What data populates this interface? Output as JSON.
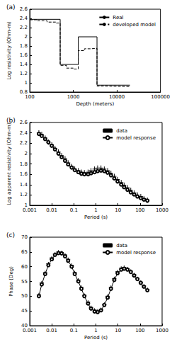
{
  "chart_data": [
    {
      "type": "line",
      "title": "(a)",
      "x_label": "Depth (meters)",
      "y_label": "Log resistivity (Ohm-m)",
      "log": "x",
      "grid": false,
      "legend": "upper right",
      "xlim": [
        100,
        100000
      ],
      "xticks": [
        100,
        1000,
        10000,
        100000
      ],
      "ylim": [
        0.8,
        2.6
      ],
      "yticks": [
        0.8,
        1,
        1.2,
        1.4,
        1.6,
        1.8,
        2,
        2.2,
        2.4,
        2.6
      ],
      "series": [
        {
          "name": "Real",
          "color": "#000000",
          "line_style": "solid",
          "marker": "none",
          "x": [
            100,
            500,
            500,
            1300,
            1300,
            3500,
            3500,
            20000
          ],
          "values": [
            2.38,
            2.38,
            1.4,
            1.4,
            2.0,
            2.0,
            0.95,
            0.95
          ]
        },
        {
          "name": "developed model",
          "color": "#000000",
          "line_style": "dashed",
          "marker": "none",
          "x": [
            100,
            150,
            150,
            250,
            250,
            400,
            400,
            500,
            500,
            700,
            700,
            1000,
            1000,
            1300,
            1300,
            1800,
            1800,
            2500,
            2500,
            3500,
            3500,
            5000,
            5000,
            20000
          ],
          "values": [
            2.37,
            2.37,
            2.35,
            2.35,
            2.32,
            2.32,
            2.3,
            2.3,
            1.38,
            1.38,
            1.32,
            1.32,
            1.3,
            1.3,
            1.7,
            1.7,
            1.74,
            1.74,
            1.75,
            1.75,
            0.93,
            0.93,
            0.92,
            0.92
          ]
        }
      ]
    },
    {
      "type": "line",
      "title": "(b)",
      "x_label": "Period (s)",
      "y_label": "Log apparent resistivity (Ohm-m)",
      "log": "x",
      "grid": false,
      "legend": "upper right",
      "xlim": [
        0.001,
        1000
      ],
      "xticks": [
        0.001,
        0.01,
        0.1,
        1,
        10,
        100,
        1000
      ],
      "ylim": [
        1,
        2.6
      ],
      "yticks": [
        1,
        1.2,
        1.4,
        1.6,
        1.8,
        2,
        2.2,
        2.4,
        2.6
      ],
      "x": [
        0.0026,
        0.0035,
        0.005,
        0.007,
        0.01,
        0.014,
        0.02,
        0.028,
        0.04,
        0.055,
        0.08,
        0.11,
        0.16,
        0.22,
        0.3,
        0.44,
        0.6,
        0.87,
        1.2,
        1.7,
        2.4,
        3.4,
        4.8,
        6.8,
        9.6,
        14,
        19,
        27,
        38,
        54,
        76,
        108,
        150,
        215
      ],
      "series": [
        {
          "name": "data",
          "color": "#000000",
          "marker": "cross",
          "line_style": "none",
          "values": [
            2.4,
            2.37,
            2.3,
            2.22,
            2.17,
            2.1,
            2.03,
            1.96,
            1.9,
            1.82,
            1.75,
            1.7,
            1.67,
            1.64,
            1.63,
            1.64,
            1.67,
            1.7,
            1.72,
            1.72,
            1.7,
            1.67,
            1.62,
            1.56,
            1.5,
            1.44,
            1.39,
            1.34,
            1.29,
            1.24,
            1.2,
            1.17,
            1.13,
            1.1
          ],
          "errors": [
            0.05,
            0.05,
            0.05,
            0.05,
            0.05,
            0.05,
            0.05,
            0.05,
            0.05,
            0.05,
            0.05,
            0.05,
            0.05,
            0.05,
            0.05,
            0.05,
            0.05,
            0.05,
            0.05,
            0.05,
            0.05,
            0.05,
            0.05,
            0.05,
            0.05,
            0.05,
            0.05,
            0.05,
            0.05,
            0.05,
            0.05,
            0.05,
            0.05,
            0.05
          ]
        },
        {
          "name": "model response",
          "color": "#000000",
          "marker": "circle",
          "line_style": "solid",
          "values": [
            2.38,
            2.34,
            2.28,
            2.22,
            2.15,
            2.08,
            2.0,
            1.93,
            1.86,
            1.79,
            1.73,
            1.68,
            1.64,
            1.61,
            1.6,
            1.6,
            1.62,
            1.64,
            1.66,
            1.67,
            1.66,
            1.63,
            1.58,
            1.52,
            1.46,
            1.4,
            1.35,
            1.3,
            1.25,
            1.21,
            1.17,
            1.14,
            1.11,
            1.09
          ]
        }
      ]
    },
    {
      "type": "line",
      "title": "(c)",
      "x_label": "Period (s)",
      "y_label": "Phase (Deg)",
      "log": "x",
      "grid": false,
      "legend": "upper right",
      "xlim": [
        0.001,
        1000
      ],
      "xticks": [
        0.001,
        0.01,
        0.1,
        1,
        10,
        100,
        1000
      ],
      "ylim": [
        40,
        70
      ],
      "yticks": [
        40,
        45,
        50,
        55,
        60,
        65,
        70
      ],
      "x": [
        0.0026,
        0.0035,
        0.005,
        0.007,
        0.01,
        0.014,
        0.02,
        0.028,
        0.04,
        0.055,
        0.08,
        0.11,
        0.16,
        0.22,
        0.3,
        0.44,
        0.6,
        0.87,
        1.2,
        1.7,
        2.4,
        3.4,
        4.8,
        6.8,
        9.6,
        14,
        19,
        27,
        38,
        54,
        76,
        108,
        150,
        215
      ],
      "series": [
        {
          "name": "data",
          "color": "#000000",
          "marker": "cross",
          "line_style": "none",
          "values": [
            50.5,
            54.5,
            58,
            61,
            63,
            64.3,
            65,
            64.8,
            64,
            62.5,
            60.5,
            58,
            55.5,
            53,
            50.3,
            48,
            46.2,
            45.3,
            45,
            45.5,
            47.3,
            50,
            53,
            56,
            58.3,
            59.5,
            59.8,
            59.3,
            58.5,
            57.3,
            56,
            54.8,
            53.5,
            52.3
          ],
          "errors": [
            0.6,
            0.6,
            0.6,
            0.6,
            0.6,
            0.6,
            0.6,
            0.6,
            0.6,
            0.6,
            0.6,
            0.6,
            0.6,
            0.6,
            0.6,
            0.6,
            0.6,
            0.6,
            0.6,
            0.6,
            0.6,
            0.6,
            0.6,
            0.6,
            0.6,
            0.6,
            0.6,
            0.6,
            0.6,
            0.6,
            0.6,
            0.6,
            0.6,
            0.6
          ]
        },
        {
          "name": "model response",
          "color": "#000000",
          "marker": "circle",
          "line_style": "solid",
          "values": [
            50,
            54,
            57.5,
            60.5,
            62.5,
            64,
            64.6,
            64.5,
            63.5,
            62,
            60,
            57.5,
            55,
            52.5,
            50,
            47.5,
            45.8,
            44.8,
            44.6,
            45.2,
            47,
            49.5,
            52.5,
            55.5,
            57.8,
            59,
            59.3,
            59,
            58.2,
            57,
            55.8,
            54.5,
            53.2,
            52
          ]
        }
      ]
    }
  ]
}
